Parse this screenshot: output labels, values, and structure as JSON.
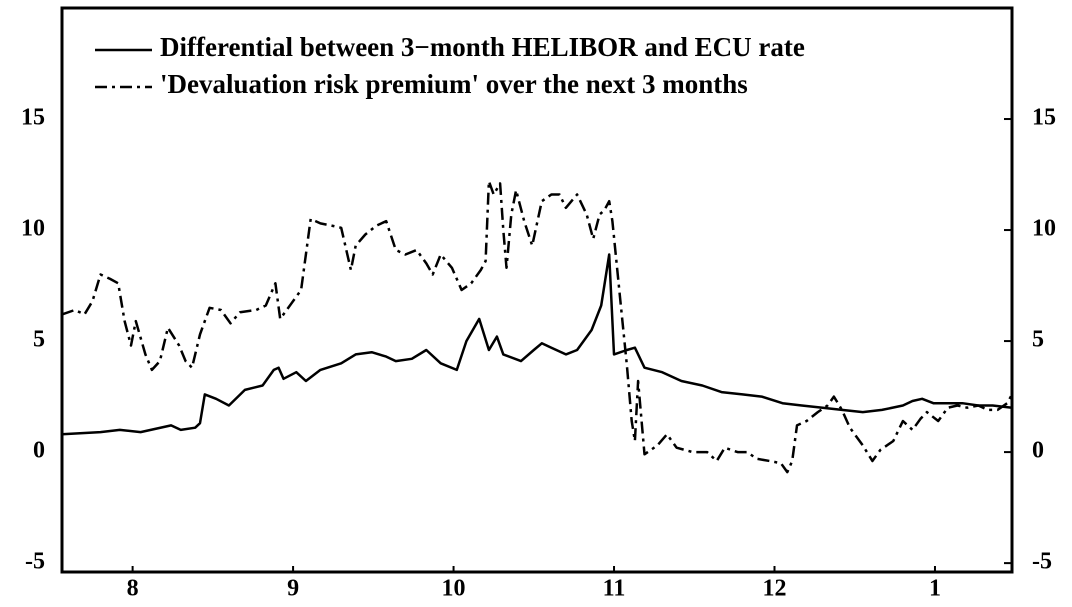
{
  "chart_data": {
    "type": "line",
    "xlim": [
      7.56,
      13.48
    ],
    "xticks": [
      8,
      9,
      10,
      11,
      12,
      {
        "value": 13,
        "label": "1"
      }
    ],
    "ylim": [
      -5.4,
      20
    ],
    "yticks": [
      -5,
      0,
      5,
      10,
      15
    ],
    "legend": "top-left",
    "series": [
      {
        "name": "Differential between 3−month HELIBOR and ECU rate",
        "color": "#000000",
        "dash": "solid",
        "x": [
          7.56,
          7.8,
          7.92,
          8.05,
          8.24,
          8.3,
          8.39,
          8.42,
          8.45,
          8.52,
          8.6,
          8.7,
          8.81,
          8.88,
          8.91,
          8.94,
          9.02,
          9.08,
          9.17,
          9.3,
          9.39,
          9.49,
          9.58,
          9.64,
          9.74,
          9.83,
          9.92,
          10.02,
          10.08,
          10.16,
          10.22,
          10.27,
          10.31,
          10.42,
          10.5,
          10.55,
          10.61,
          10.7,
          10.77,
          10.86,
          10.92,
          10.97,
          11.0,
          11.08,
          11.13,
          11.19,
          11.3,
          11.42,
          11.55,
          11.67,
          11.8,
          11.92,
          12.05,
          12.17,
          12.3,
          12.42,
          12.55,
          12.67,
          12.8,
          12.86,
          12.92,
          12.99,
          13.08,
          13.17,
          13.27,
          13.36,
          13.48
        ],
        "values": [
          0.8,
          0.9,
          1.0,
          0.9,
          1.2,
          1.0,
          1.1,
          1.3,
          2.6,
          2.4,
          2.1,
          2.8,
          3.0,
          3.7,
          3.8,
          3.3,
          3.6,
          3.2,
          3.7,
          4.0,
          4.4,
          4.5,
          4.3,
          4.1,
          4.2,
          4.6,
          4.0,
          3.7,
          5.0,
          6.0,
          4.6,
          5.2,
          4.4,
          4.1,
          4.6,
          4.9,
          4.7,
          4.4,
          4.6,
          5.5,
          6.6,
          8.9,
          4.4,
          4.6,
          4.7,
          3.8,
          3.6,
          3.2,
          3.0,
          2.7,
          2.6,
          2.5,
          2.2,
          2.1,
          2.0,
          1.9,
          1.8,
          1.9,
          2.1,
          2.3,
          2.4,
          2.2,
          2.2,
          2.2,
          2.1,
          2.1,
          2.0
        ]
      },
      {
        "name": "'Devaluation risk premium' over the next 3 months",
        "color": "#000000",
        "dash": "dash-dot",
        "x": [
          7.56,
          7.64,
          7.7,
          7.75,
          7.8,
          7.86,
          7.91,
          7.95,
          7.99,
          8.02,
          8.08,
          8.12,
          8.17,
          8.22,
          8.29,
          8.33,
          8.37,
          8.42,
          8.48,
          8.55,
          8.61,
          8.67,
          8.77,
          8.83,
          8.89,
          8.92,
          8.99,
          9.05,
          9.11,
          9.17,
          9.24,
          9.3,
          9.36,
          9.39,
          9.45,
          9.52,
          9.58,
          9.64,
          9.7,
          9.77,
          9.83,
          9.87,
          9.92,
          9.99,
          10.05,
          10.11,
          10.17,
          10.2,
          10.22,
          10.25,
          10.29,
          10.31,
          10.33,
          10.36,
          10.39,
          10.44,
          10.49,
          10.55,
          10.61,
          10.66,
          10.7,
          10.77,
          10.83,
          10.87,
          10.91,
          10.94,
          10.97,
          10.99,
          11.04,
          11.08,
          11.11,
          11.13,
          11.15,
          11.19,
          11.27,
          11.33,
          11.39,
          11.49,
          11.58,
          11.64,
          11.69,
          11.77,
          11.83,
          11.89,
          11.97,
          12.04,
          12.08,
          12.11,
          12.14,
          12.2,
          12.27,
          12.33,
          12.37,
          12.42,
          12.47,
          12.55,
          12.61,
          12.66,
          12.74,
          12.8,
          12.86,
          12.91,
          12.95,
          13.02,
          13.08,
          13.14,
          13.2,
          13.27,
          13.33,
          13.39,
          13.45,
          13.48
        ],
        "values": [
          6.2,
          6.4,
          6.2,
          6.8,
          8.0,
          7.8,
          7.6,
          5.9,
          4.8,
          5.9,
          4.4,
          3.7,
          4.1,
          5.6,
          4.8,
          4.1,
          3.8,
          5.3,
          6.5,
          6.4,
          5.8,
          6.3,
          6.4,
          6.6,
          7.6,
          6.0,
          6.7,
          7.3,
          10.5,
          10.3,
          10.2,
          10.1,
          8.2,
          9.3,
          9.8,
          10.2,
          10.4,
          9.1,
          8.9,
          9.1,
          8.5,
          8.0,
          8.9,
          8.3,
          7.3,
          7.6,
          8.2,
          8.6,
          12.2,
          11.6,
          12.1,
          10.0,
          8.3,
          10.7,
          11.8,
          10.4,
          9.3,
          11.3,
          11.6,
          11.6,
          11.0,
          11.6,
          10.7,
          9.6,
          10.7,
          10.9,
          11.3,
          10.4,
          6.8,
          3.9,
          1.4,
          0.5,
          3.2,
          -0.1,
          0.3,
          0.8,
          0.2,
          0.0,
          0.0,
          -0.4,
          0.2,
          0.0,
          0.0,
          -0.3,
          -0.4,
          -0.5,
          -0.9,
          -0.4,
          1.2,
          1.4,
          1.8,
          2.1,
          2.5,
          1.9,
          1.1,
          0.3,
          -0.4,
          0.1,
          0.5,
          1.4,
          1.0,
          1.5,
          1.8,
          1.4,
          2.0,
          2.1,
          2.0,
          2.1,
          1.9,
          1.9,
          2.2,
          2.6
        ]
      }
    ]
  }
}
